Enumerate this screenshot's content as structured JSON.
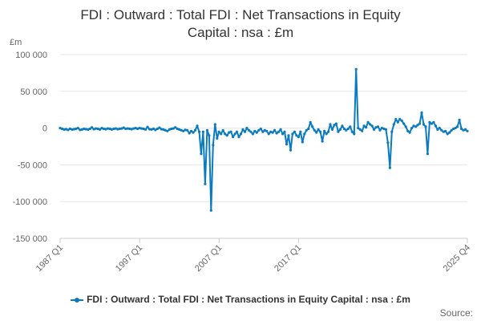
{
  "chart_data": {
    "type": "line",
    "title_lines": [
      "FDI : Outward : Total FDI : Net Transactions in Equity",
      "Capital : nsa : £m"
    ],
    "unit_label": "£m",
    "x_tick_labels": [
      "1987 Q1",
      "1997 Q1",
      "2007 Q1",
      "2017 Q1",
      "2025 Q4"
    ],
    "y_tick_labels": [
      "100 000",
      "50 000",
      "0",
      "-50 000",
      "-100 000",
      "-150 000"
    ],
    "y_ticks": [
      100000,
      50000,
      0,
      -50000,
      -100000,
      -150000
    ],
    "ylim": [
      -150000,
      100000
    ],
    "grid": true,
    "legend_position": "bottom",
    "color": "#0b7bc0",
    "series": [
      {
        "name": "FDI : Outward : Total FDI : Net Transactions in Equity Capital : nsa : £m",
        "values": [
          0,
          -1000,
          -2000,
          -1500,
          -2500,
          -1000,
          -2000,
          -1500,
          -1000,
          0,
          -2500,
          -2000,
          -1000,
          -1500,
          -2000,
          -1000,
          1000,
          -1500,
          -500,
          -1000,
          -2000,
          0,
          -1000,
          -1500,
          -500,
          -1000,
          -2000,
          -1000,
          -500,
          -1500,
          -1000,
          -500,
          500,
          -1000,
          -500,
          -1000,
          -1500,
          -500,
          0,
          -1000,
          0,
          -500,
          -1000,
          -2000,
          1500,
          -1500,
          -2000,
          -1000,
          -2500,
          -1000,
          500,
          -1500,
          -2000,
          -3000,
          -4000,
          -2000,
          -1000,
          -500,
          1000,
          -1000,
          -2000,
          -3000,
          -4000,
          -2500,
          -3000,
          -7000,
          -4000,
          -6000,
          -3000,
          3000,
          -5000,
          -35000,
          -5000,
          -76000,
          -3000,
          -10000,
          -112000,
          -23000,
          5000,
          -14000,
          -5000,
          -8000,
          -3000,
          -8000,
          -10000,
          -6000,
          -5000,
          -12000,
          -8000,
          -5000,
          -12000,
          -8000,
          -2000,
          -5000,
          0,
          -3000,
          -5000,
          -8000,
          -4000,
          -6000,
          -3000,
          -1000,
          -5000,
          -3000,
          -4000,
          -8000,
          -5000,
          -6000,
          -3000,
          -7000,
          -5000,
          -2000,
          -8000,
          -5000,
          -22000,
          -10000,
          -30000,
          -8000,
          -5000,
          -10000,
          -12000,
          -5000,
          -19000,
          -8000,
          -3000,
          -1000,
          8000,
          2000,
          -3000,
          -6000,
          -2000,
          -5000,
          -18000,
          -4000,
          -8000,
          -5000,
          5000,
          -2000,
          4000,
          6000,
          -5000,
          -2000,
          3000,
          -1000,
          -3000,
          -1000,
          2000,
          -5000,
          -8000,
          80000,
          0,
          -2000,
          -4000,
          3000,
          1000,
          8000,
          5000,
          3000,
          -2000,
          1000,
          2000,
          -3000,
          0,
          -1000,
          -2000,
          -20000,
          -54000,
          -5000,
          5000,
          12000,
          8000,
          12000,
          10000,
          6000,
          2000,
          -4000,
          -6000,
          0,
          3000,
          2000,
          4000,
          6000,
          21000,
          5000,
          2000,
          -35000,
          8000,
          6000,
          8000,
          3000,
          -2000,
          0,
          -3000,
          -5000,
          -4000,
          -8000,
          -6000,
          -3000,
          -1000,
          0,
          2000,
          11000,
          -1000,
          -3000,
          -2000,
          -4000
        ]
      }
    ]
  },
  "source_label": "Source:"
}
